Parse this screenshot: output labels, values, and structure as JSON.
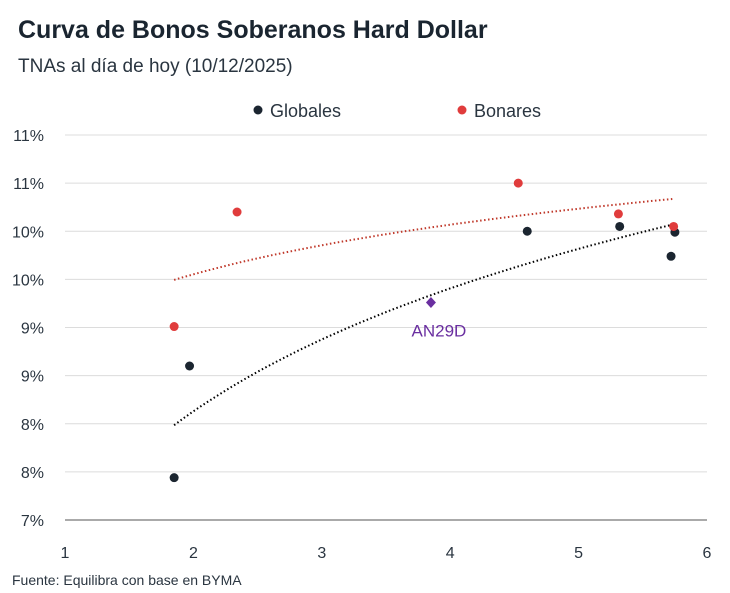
{
  "chart_data": {
    "type": "scatter",
    "title": "Curva de Bonos Soberanos Hard Dollar",
    "subtitle": "TNAs al día de hoy (10/12/2025)",
    "source": "Fuente: Equilibra con base en BYMA",
    "xlim": [
      1,
      6
    ],
    "ylim": [
      7,
      11
    ],
    "x_ticks": [
      1,
      2,
      3,
      4,
      5,
      6
    ],
    "y_ticks": [
      7,
      7.5,
      8,
      8.5,
      9,
      9.5,
      10,
      10.5,
      11
    ],
    "y_tick_labels": [
      "7%",
      "8%",
      "8%",
      "9%",
      "9%",
      "10%",
      "10%",
      "11%",
      "11%"
    ],
    "grid": "horizontal",
    "legend_placement": "top",
    "series": [
      {
        "name": "Globales",
        "color": "#1b2530",
        "points": [
          [
            1.85,
            7.44
          ],
          [
            1.97,
            8.6
          ],
          [
            4.6,
            10.0
          ],
          [
            5.32,
            10.05
          ],
          [
            5.72,
            9.74
          ],
          [
            5.75,
            9.99
          ]
        ],
        "trendline": {
          "type": "logarithmic",
          "color": "#000000",
          "x_range": [
            1.85,
            5.73
          ]
        }
      },
      {
        "name": "Bonares",
        "color": "#e03c3c",
        "points": [
          [
            1.85,
            9.01
          ],
          [
            2.34,
            10.2
          ],
          [
            4.53,
            10.5
          ],
          [
            5.31,
            10.18
          ],
          [
            5.74,
            10.05
          ]
        ],
        "trendline": {
          "type": "logarithmic",
          "color": "#c0392b",
          "x_range": [
            1.85,
            5.73
          ]
        }
      }
    ],
    "annotations": [
      {
        "label": "AN29D",
        "x": 3.85,
        "y": 9.26,
        "color": "#6a2fa0",
        "marker": "diamond"
      }
    ]
  }
}
